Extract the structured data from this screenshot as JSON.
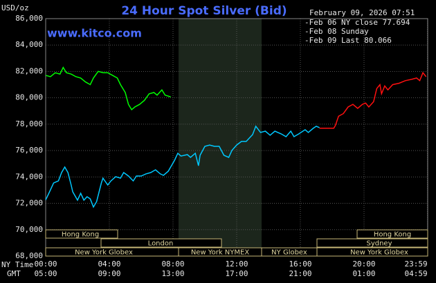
{
  "chart_data": {
    "type": "line",
    "title": "24 Hour Spot Silver (Bid)",
    "unit_label": "USD/oz",
    "site": "www.kitco.com",
    "timestamp": "February 09, 2026 07:51",
    "axis_row_labels": [
      "NY Time",
      "GMT"
    ],
    "background": "#000000",
    "grid": true,
    "ylim": [
      68000,
      86000
    ],
    "yticks": [
      {
        "value": 68000,
        "label": "68,000"
      },
      {
        "value": 70000,
        "label": "70,000"
      },
      {
        "value": 72000,
        "label": "72,000"
      },
      {
        "value": 74000,
        "label": "74,000"
      },
      {
        "value": 76000,
        "label": "76,000"
      },
      {
        "value": 78000,
        "label": "78,000"
      },
      {
        "value": 80000,
        "label": "80,000"
      },
      {
        "value": 82000,
        "label": "82,000"
      },
      {
        "value": 84000,
        "label": "84,000"
      },
      {
        "value": 86000,
        "label": "86,000"
      }
    ],
    "xlim": [
      0,
      24
    ],
    "xticks": [
      {
        "value": 0,
        "label": "00:00"
      },
      {
        "value": 4,
        "label": "04:00"
      },
      {
        "value": 8,
        "label": "08:00"
      },
      {
        "value": 12,
        "label": "12:00"
      },
      {
        "value": 16,
        "label": "16:00"
      },
      {
        "value": 20,
        "label": "20:00"
      },
      {
        "value": 23.983,
        "label": "23:59"
      }
    ],
    "xticks2": [
      {
        "value": 0,
        "label": "05:00"
      },
      {
        "value": 4,
        "label": "09:00"
      },
      {
        "value": 8,
        "label": "13:00"
      },
      {
        "value": 12,
        "label": "17:00"
      },
      {
        "value": 16,
        "label": "21:00"
      },
      {
        "value": 20,
        "label": "01:00"
      },
      {
        "value": 23.983,
        "label": "04:59"
      }
    ],
    "sessions": [
      "Hong Kong",
      "London",
      "New York Globex",
      "New York NYMEX",
      "NY Globex",
      "Hong Kong",
      "Sydney",
      "New York Globex"
    ],
    "series": [
      {
        "name": "-Feb 06 NY close 77.694",
        "color": "#00c8ff",
        "x": [
          0,
          0.2,
          0.5,
          0.8,
          1.0,
          1.2,
          1.4,
          1.6,
          1.7,
          2.0,
          2.2,
          2.4,
          2.6,
          2.8,
          3.0,
          3.2,
          3.5,
          3.6,
          3.9,
          4.1,
          4.4,
          4.7,
          4.9,
          5.2,
          5.5,
          5.7,
          6.0,
          6.3,
          6.6,
          6.9,
          7.2,
          7.4,
          7.7,
          7.9,
          8.1,
          8.3,
          8.5,
          8.9,
          9.1,
          9.4,
          9.6,
          9.7,
          10.0,
          10.3,
          10.6,
          10.9,
          11.2,
          11.5,
          11.7,
          12.0,
          12.3,
          12.6,
          13.0,
          13.2,
          13.5,
          13.8,
          14.1,
          14.4,
          14.8,
          15.1,
          15.4,
          15.6,
          15.9,
          16.3,
          16.5,
          16.8,
          17.0,
          17.2
        ],
        "values": [
          72260,
          72760,
          73540,
          73700,
          74330,
          74750,
          74330,
          73390,
          72870,
          72240,
          72760,
          72240,
          72500,
          72340,
          71720,
          72130,
          73550,
          73910,
          73390,
          73700,
          74020,
          73910,
          74330,
          74070,
          73700,
          74070,
          74070,
          74230,
          74330,
          74540,
          74230,
          74120,
          74430,
          74850,
          75270,
          75790,
          75580,
          75690,
          75480,
          75790,
          74850,
          75640,
          76320,
          76420,
          76320,
          76320,
          75640,
          75480,
          76010,
          76420,
          76690,
          76690,
          77210,
          77840,
          77370,
          77470,
          77160,
          77470,
          77260,
          77050,
          77470,
          77050,
          77260,
          77580,
          77370,
          77680,
          77840,
          77740
        ]
      },
      {
        "name": "-Feb 08 Sunday",
        "color": "#ff1010",
        "x": [
          17.2,
          18.1,
          18.2,
          18.4,
          18.7,
          19.0,
          19.3,
          19.6,
          19.9,
          20.1,
          20.3,
          20.6,
          20.8,
          21.0,
          21.1,
          21.3,
          21.5,
          21.8,
          22.2,
          22.6,
          23.0,
          23.3,
          23.5,
          23.7,
          23.9
        ],
        "values": [
          77694,
          77694,
          77900,
          78600,
          78800,
          79300,
          79500,
          79200,
          79500,
          79600,
          79300,
          79700,
          80700,
          81000,
          80300,
          80900,
          80600,
          81000,
          81100,
          81300,
          81400,
          81500,
          81300,
          81900,
          81600
        ]
      },
      {
        "name": "-Feb 09 Last 80.066",
        "color": "#00ff00",
        "x": [
          0,
          0.3,
          0.6,
          0.9,
          1.1,
          1.3,
          1.6,
          1.9,
          2.2,
          2.5,
          2.8,
          3.0,
          3.3,
          3.6,
          3.9,
          4.2,
          4.5,
          4.7,
          5.0,
          5.2,
          5.4,
          5.6,
          5.9,
          6.2,
          6.5,
          6.8,
          7.0,
          7.3,
          7.5,
          7.85
        ],
        "values": [
          81700,
          81600,
          81900,
          81800,
          82300,
          81900,
          81800,
          81600,
          81500,
          81200,
          81000,
          81500,
          82000,
          81900,
          81900,
          81700,
          81500,
          81000,
          80400,
          79500,
          79100,
          79300,
          79500,
          79800,
          80300,
          80400,
          80200,
          80600,
          80200,
          80066
        ]
      }
    ]
  }
}
